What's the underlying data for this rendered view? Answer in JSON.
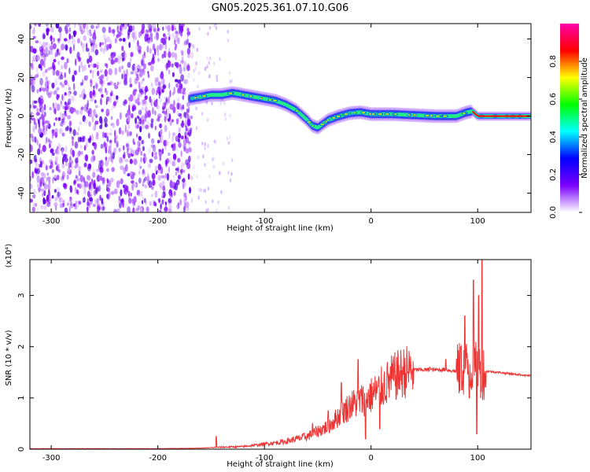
{
  "figure": {
    "title": "GN05.2025.361.07.10.G06"
  },
  "chart_data": [
    {
      "type": "heatmap",
      "xlabel": "Height of straight line (km)",
      "ylabel": "Frequency (Hz)",
      "xlim": [
        -320,
        150
      ],
      "ylim": [
        -50,
        48
      ],
      "xticks": [
        -300,
        -200,
        -100,
        0,
        100
      ],
      "yticks": [
        -40,
        -20,
        0,
        20,
        40
      ],
      "colorbar": {
        "label": "Normalized spectral amplitude",
        "range": [
          0,
          1
        ],
        "ticks": [
          "0.0",
          "0.2",
          "0.4",
          "0.6",
          "0.8"
        ],
        "colors": [
          "#ffffff",
          "#7b00ff",
          "#0000ff",
          "#00ffff",
          "#00ff00",
          "#ffff00",
          "#ff0000",
          "#ff00aa"
        ]
      },
      "ridge": {
        "x": [
          -170,
          -160,
          -150,
          -140,
          -130,
          -120,
          -110,
          -100,
          -90,
          -80,
          -70,
          -60,
          -55,
          -50,
          -45,
          -40,
          -35,
          -30,
          -20,
          -10,
          0,
          20,
          40,
          60,
          80,
          90,
          95,
          100,
          150
        ],
        "y": [
          9,
          10,
          11,
          11,
          12,
          11,
          10,
          9,
          8,
          6,
          3,
          -2,
          -5,
          -6,
          -4,
          -2,
          -1,
          0,
          1.5,
          2,
          1,
          1,
          0.5,
          0,
          0,
          2,
          2.5,
          0,
          0
        ]
      },
      "noise_region": {
        "x": [
          -320,
          -168
        ]
      }
    },
    {
      "type": "line",
      "xlabel": "Height of straight line (km)",
      "ylabel": "SNR (10 * v/v)",
      "scale_label": "(x10⁴)",
      "xlim": [
        -320,
        150
      ],
      "ylim": [
        0,
        3.7
      ],
      "xticks": [
        -300,
        -200,
        -100,
        0,
        100
      ],
      "yticks": [
        0,
        1,
        2,
        3
      ],
      "series": [
        {
          "color": "#ee3333",
          "envelope_x": [
            -320,
            -200,
            -160,
            -140,
            -120,
            -100,
            -80,
            -60,
            -40,
            -30,
            -20,
            -10,
            0,
            10,
            20,
            30,
            40,
            50,
            60,
            70,
            80,
            85,
            90,
            95,
            100,
            105,
            110,
            150
          ],
          "envelope_y": [
            0.01,
            0.01,
            0.02,
            0.04,
            0.05,
            0.1,
            0.15,
            0.25,
            0.45,
            0.65,
            0.85,
            0.95,
            1.05,
            1.2,
            1.38,
            1.5,
            1.55,
            1.55,
            1.55,
            1.55,
            1.52,
            1.55,
            1.6,
            1.55,
            1.55,
            1.5,
            1.52,
            1.43
          ],
          "spike_x": [
            -145,
            -55,
            -40,
            -28,
            -12,
            -5,
            8,
            55,
            70,
            84,
            88,
            92,
            96,
            99,
            101,
            104
          ],
          "spike_y": [
            0.25,
            0.5,
            0.75,
            1.3,
            1.75,
            0.2,
            0.4,
            1.6,
            1.75,
            2.0,
            2.6,
            1.0,
            3.3,
            0.3,
            3.0,
            3.7
          ]
        }
      ]
    }
  ]
}
